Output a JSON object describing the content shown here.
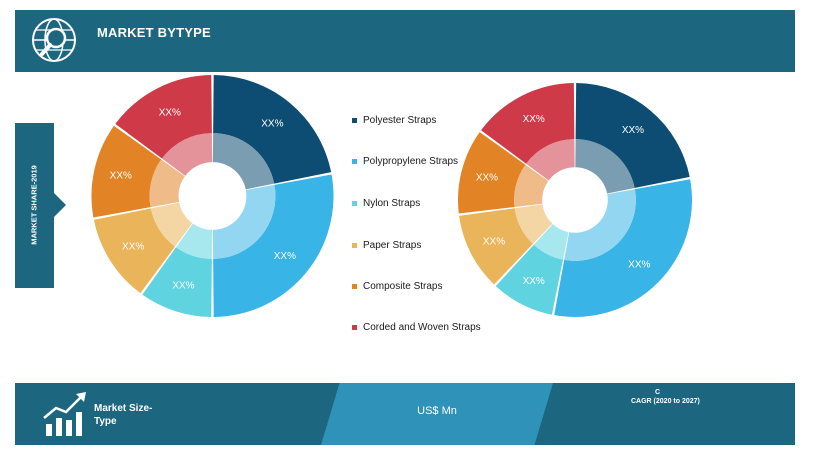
{
  "header": {
    "title": "MARKET BYTYPE",
    "icon": "globe-search-icon"
  },
  "side": {
    "label": "MARKET SHARE-2019"
  },
  "legend": [
    {
      "label": "Polyester Straps",
      "color": "#0e4d73"
    },
    {
      "label": "Polypropylene Straps",
      "color": "#38b4e6"
    },
    {
      "label": "Nylon Straps",
      "color": "#5fd4e0"
    },
    {
      "label": "Paper Straps",
      "color": "#e9b45a"
    },
    {
      "label": "Composite Straps",
      "color": "#e28426"
    },
    {
      "label": "Corded and Woven Straps",
      "color": "#cf3a48"
    }
  ],
  "chart_data": [
    {
      "type": "pie",
      "categories": [
        "Polyester Straps",
        "Polypropylene Straps",
        "Nylon Straps",
        "Paper Straps",
        "Composite Straps",
        "Corded and Woven Straps"
      ],
      "values": [
        22,
        28,
        10,
        12,
        13,
        15
      ],
      "data_labels": [
        "XX%",
        "XX%",
        "XX%",
        "XX%",
        "XX%",
        "XX%"
      ]
    },
    {
      "type": "pie",
      "categories": [
        "Polyester Straps",
        "Polypropylene Straps",
        "Nylon Straps",
        "Paper Straps",
        "Composite Straps",
        "Corded and Woven Straps"
      ],
      "values": [
        22,
        31,
        9,
        11,
        12,
        15
      ],
      "data_labels": [
        "XX%",
        "XX%",
        "XX%",
        "XX%",
        "XX%",
        "XX%"
      ]
    }
  ],
  "footer": {
    "left_text": "Market Size-Type",
    "center_text": "US$ Mn",
    "right_top": "C",
    "right_bottom": "CAGR (2020 to 2027)",
    "icon": "growth-chart-icon"
  },
  "colors": {
    "primary": "#1d6680",
    "accent": "#2f93b9"
  }
}
